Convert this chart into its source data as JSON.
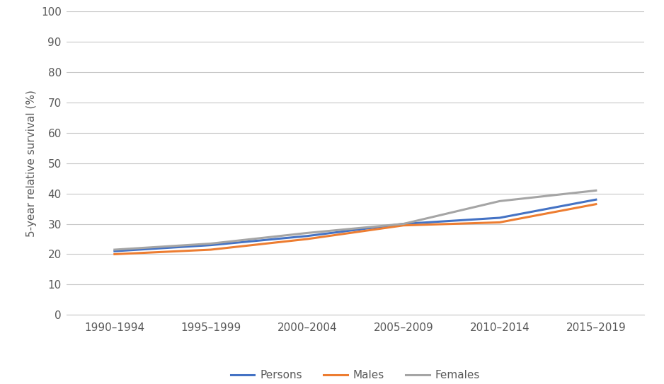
{
  "categories": [
    "1990–1994",
    "1995–1999",
    "2000–2004",
    "2005–2009",
    "2010–2014",
    "2015–2019"
  ],
  "persons": [
    21.0,
    23.0,
    26.0,
    30.0,
    32.0,
    38.0
  ],
  "males": [
    20.0,
    21.5,
    25.0,
    29.5,
    30.5,
    36.5
  ],
  "females": [
    21.5,
    23.5,
    27.0,
    30.0,
    37.5,
    41.0
  ],
  "persons_color": "#4472C4",
  "males_color": "#ED7D31",
  "females_color": "#A5A5A5",
  "ylabel": "5-year relative survival (%)",
  "ylim": [
    0,
    100
  ],
  "yticks": [
    0,
    10,
    20,
    30,
    40,
    50,
    60,
    70,
    80,
    90,
    100
  ],
  "legend_labels": [
    "Persons",
    "Males",
    "Females"
  ],
  "line_width": 2.2,
  "background_color": "#ffffff",
  "grid_color": "#c8c8c8"
}
